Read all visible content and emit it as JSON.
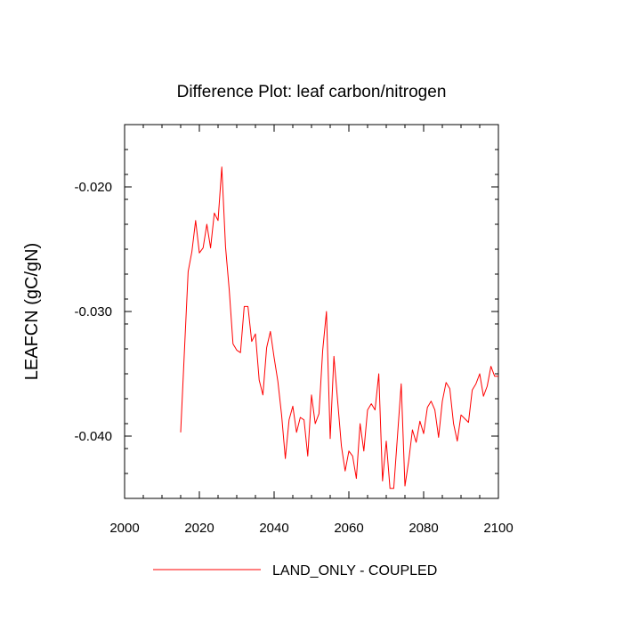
{
  "chart_data": {
    "type": "line",
    "title": "Difference Plot: leaf carbon/nitrogen",
    "xlabel": "",
    "ylabel": "LEAFCN  (gC/gN)",
    "xlim": [
      2000,
      2100
    ],
    "ylim": [
      -0.045,
      -0.015
    ],
    "x_ticks": [
      {
        "value": 2000,
        "label": "2000"
      },
      {
        "value": 2020,
        "label": "2020"
      },
      {
        "value": 2040,
        "label": "2040"
      },
      {
        "value": 2060,
        "label": "2060"
      },
      {
        "value": 2080,
        "label": "2080"
      },
      {
        "value": 2100,
        "label": "2100"
      }
    ],
    "y_ticks": [
      {
        "value": -0.02,
        "label": "-0.020"
      },
      {
        "value": -0.03,
        "label": "-0.030"
      },
      {
        "value": -0.04,
        "label": "-0.040"
      }
    ],
    "legend_position": "bottom-center",
    "series": [
      {
        "name": "LAND_ONLY - COUPLED",
        "color": "#ff0000",
        "x": [
          2015,
          2016,
          2017,
          2018,
          2019,
          2020,
          2021,
          2022,
          2023,
          2024,
          2025,
          2026,
          2027,
          2028,
          2029,
          2030,
          2031,
          2032,
          2033,
          2034,
          2035,
          2036,
          2037,
          2038,
          2039,
          2040,
          2041,
          2042,
          2043,
          2044,
          2045,
          2046,
          2047,
          2048,
          2049,
          2050,
          2051,
          2052,
          2053,
          2054,
          2055,
          2056,
          2057,
          2058,
          2059,
          2060,
          2061,
          2062,
          2063,
          2064,
          2065,
          2066,
          2067,
          2068,
          2069,
          2070,
          2071,
          2072,
          2073,
          2074,
          2075,
          2076,
          2077,
          2078,
          2079,
          2080,
          2081,
          2082,
          2083,
          2084,
          2085,
          2086,
          2087,
          2088,
          2089,
          2090,
          2091,
          2092,
          2093,
          2094,
          2095,
          2096,
          2097,
          2098,
          2099,
          2100
        ],
        "values": [
          -0.0397,
          -0.0332,
          -0.0268,
          -0.0252,
          -0.0227,
          -0.0253,
          -0.0249,
          -0.023,
          -0.0249,
          -0.0221,
          -0.0227,
          -0.0184,
          -0.0248,
          -0.0283,
          -0.0326,
          -0.0331,
          -0.0333,
          -0.0296,
          -0.0296,
          -0.0324,
          -0.0318,
          -0.0355,
          -0.0367,
          -0.0329,
          -0.0316,
          -0.0337,
          -0.0356,
          -0.0383,
          -0.0418,
          -0.0387,
          -0.0376,
          -0.0397,
          -0.0385,
          -0.0387,
          -0.0416,
          -0.0367,
          -0.039,
          -0.0382,
          -0.0331,
          -0.03,
          -0.0402,
          -0.0336,
          -0.0372,
          -0.0408,
          -0.0428,
          -0.0412,
          -0.0416,
          -0.0434,
          -0.039,
          -0.0412,
          -0.0379,
          -0.0374,
          -0.0379,
          -0.035,
          -0.0436,
          -0.0404,
          -0.0442,
          -0.0442,
          -0.04,
          -0.0358,
          -0.044,
          -0.042,
          -0.0395,
          -0.0405,
          -0.0388,
          -0.0398,
          -0.0377,
          -0.0372,
          -0.0379,
          -0.0401,
          -0.0372,
          -0.0357,
          -0.0362,
          -0.039,
          -0.0404,
          -0.0383,
          -0.0386,
          -0.0389,
          -0.0363,
          -0.0358,
          -0.035,
          -0.0368,
          -0.036,
          -0.0344,
          -0.0352,
          -0.0352
        ]
      }
    ]
  }
}
